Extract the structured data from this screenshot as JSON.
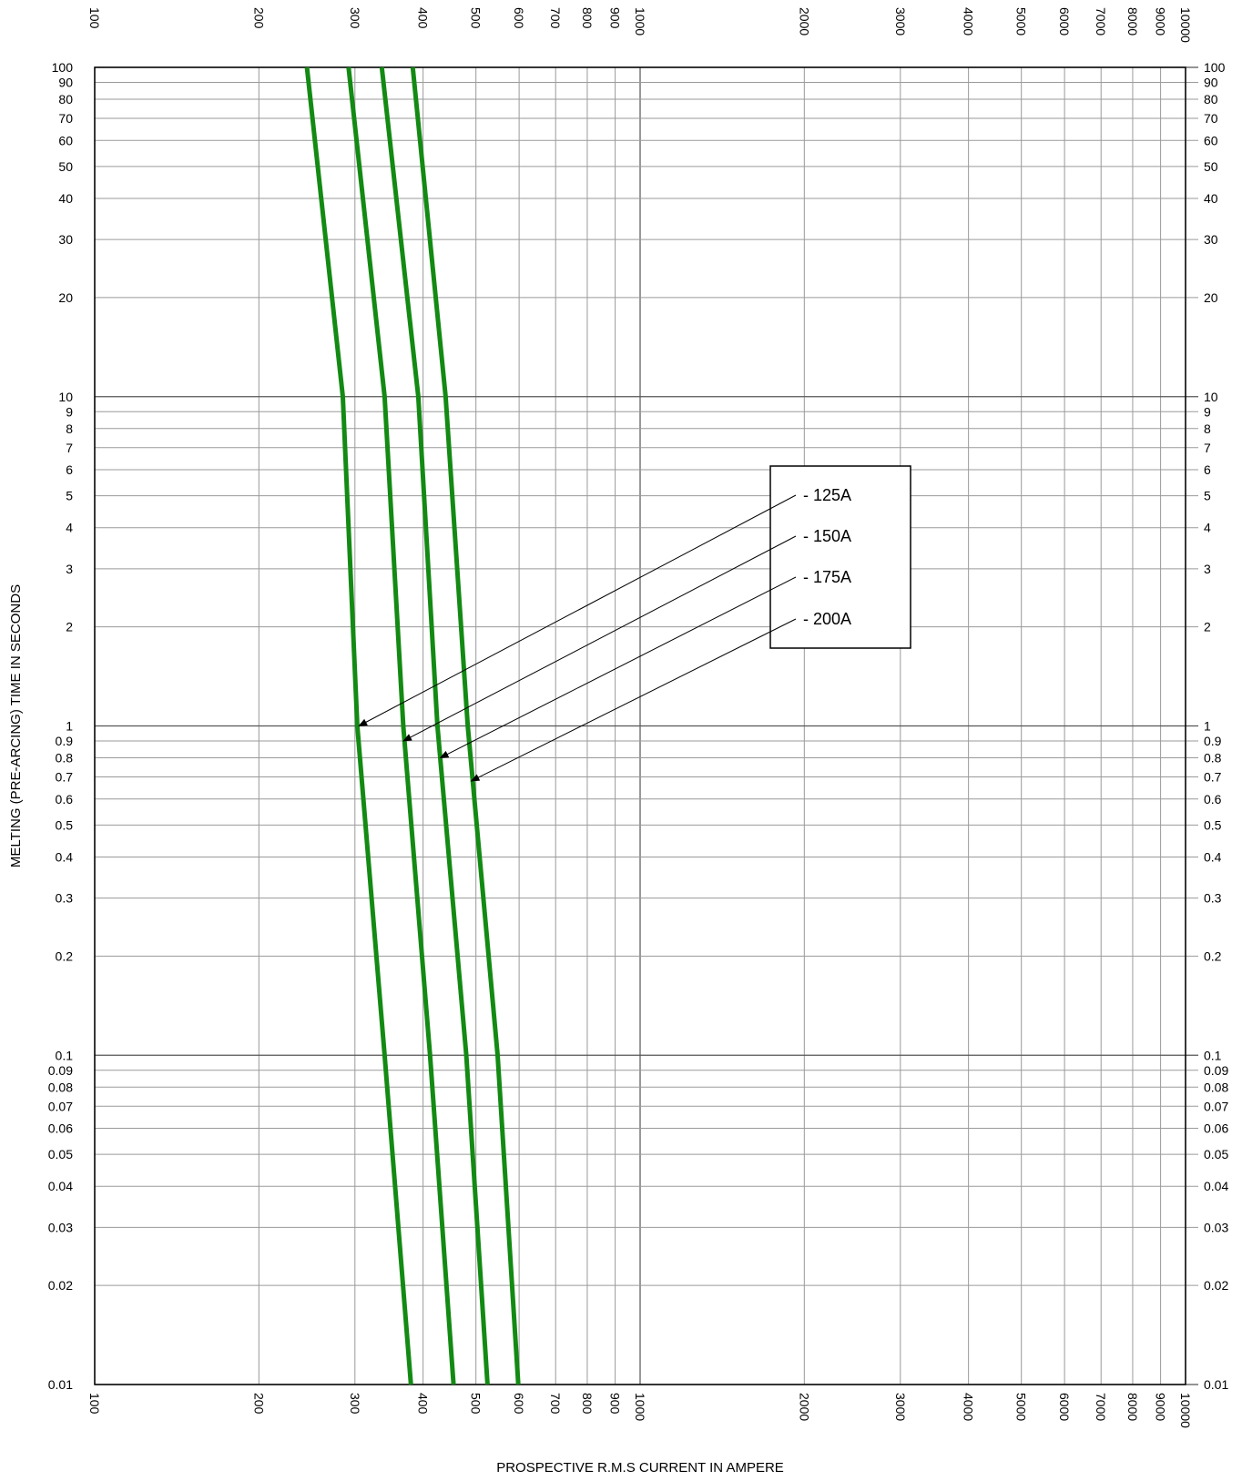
{
  "chart_data": {
    "type": "line",
    "xscale": "log",
    "yscale": "log",
    "xlim": [
      100,
      10000
    ],
    "ylim": [
      0.01,
      100
    ],
    "grid": true,
    "legend_placement": "inside-right (boxed, with leader arrows)",
    "xlabel": "PROSPECTIVE R.M.S CURRENT IN AMPERE",
    "ylabel": "MELTING (PRE-ARCING) TIME IN SECONDS",
    "x_ticks": [
      "100",
      "200",
      "300",
      "400",
      "500",
      "600",
      "700",
      "800",
      "900",
      "1000",
      "2000",
      "3000",
      "4000",
      "5000",
      "6000",
      "7000",
      "8000",
      "9000",
      "10000"
    ],
    "x_tick_values": [
      100,
      200,
      300,
      400,
      500,
      600,
      700,
      800,
      900,
      1000,
      2000,
      3000,
      4000,
      5000,
      6000,
      7000,
      8000,
      9000,
      10000
    ],
    "y_ticks": [
      "100",
      "90",
      "80",
      "70",
      "60",
      "50",
      "40",
      "30",
      "20",
      "10",
      "9",
      "8",
      "7",
      "6",
      "5",
      "4",
      "3",
      "2",
      "1",
      "0.9",
      "0.8",
      "0.7",
      "0.6",
      "0.5",
      "0.4",
      "0.3",
      "0.2",
      "0.1",
      "0.09",
      "0.08",
      "0.07",
      "0.06",
      "0.05",
      "0.04",
      "0.03",
      "0.02",
      "0.01"
    ],
    "y_tick_values": [
      100,
      90,
      80,
      70,
      60,
      50,
      40,
      30,
      20,
      10,
      9,
      8,
      7,
      6,
      5,
      4,
      3,
      2,
      1,
      0.9,
      0.8,
      0.7,
      0.6,
      0.5,
      0.4,
      0.3,
      0.2,
      0.1,
      0.09,
      0.08,
      0.07,
      0.06,
      0.05,
      0.04,
      0.03,
      0.02,
      0.01
    ],
    "series_color": "#138a13",
    "series": [
      {
        "name": "125A",
        "label": "-  125A",
        "arrow_at": [
          305,
          1.0
        ],
        "points": [
          [
            245,
            100
          ],
          [
            285,
            10
          ],
          [
            303,
            1
          ],
          [
            340,
            0.1
          ],
          [
            380,
            0.01
          ]
        ]
      },
      {
        "name": "150A",
        "label": "-  150A",
        "arrow_at": [
          368,
          0.9
        ],
        "points": [
          [
            292,
            100
          ],
          [
            340,
            10
          ],
          [
            368,
            1
          ],
          [
            412,
            0.1
          ],
          [
            455,
            0.01
          ]
        ]
      },
      {
        "name": "175A",
        "label": "-  175A",
        "arrow_at": [
          430,
          0.8
        ],
        "points": [
          [
            336,
            100
          ],
          [
            392,
            10
          ],
          [
            425,
            1
          ],
          [
            480,
            0.1
          ],
          [
            525,
            0.01
          ]
        ]
      },
      {
        "name": "200A",
        "label": "-  200A",
        "arrow_at": [
          490,
          0.68
        ],
        "points": [
          [
            383,
            100
          ],
          [
            440,
            10
          ],
          [
            483,
            1
          ],
          [
            548,
            0.1
          ],
          [
            598,
            0.01
          ]
        ]
      }
    ]
  }
}
